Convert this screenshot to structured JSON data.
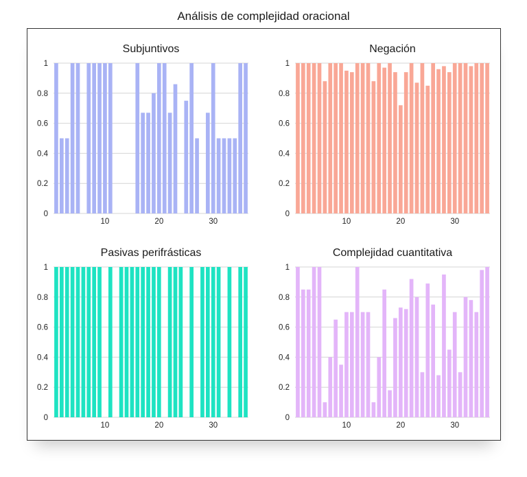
{
  "title": "Análisis de complejidad oracional",
  "chart_data": [
    {
      "type": "bar",
      "title": "Subjuntivos",
      "color": "#a9b3f5",
      "x": [
        1,
        2,
        3,
        4,
        5,
        6,
        7,
        8,
        9,
        10,
        11,
        12,
        13,
        14,
        15,
        16,
        17,
        18,
        19,
        20,
        21,
        22,
        23,
        24,
        25,
        26,
        27,
        28,
        29,
        30,
        31,
        32,
        33,
        34,
        35,
        36
      ],
      "values": [
        1,
        0.5,
        0.5,
        1,
        1,
        0,
        1,
        1,
        1,
        1,
        1,
        0,
        0,
        0,
        0,
        1,
        0.67,
        0.67,
        0.8,
        1,
        1,
        0.67,
        0.86,
        0,
        0.75,
        1,
        0.5,
        0,
        0.67,
        1,
        0.5,
        0.5,
        0.5,
        0.5,
        1,
        1
      ],
      "ylim": [
        0,
        1
      ],
      "yticks": [
        0,
        0.2,
        0.4,
        0.6,
        0.8,
        1
      ],
      "ytick_labels": [
        "0",
        "0.2",
        "0.4",
        "0.6",
        "0.8",
        "1"
      ],
      "xticks": [
        10,
        20,
        30
      ],
      "xtick_labels": [
        "10",
        "20",
        "30"
      ],
      "grid": true
    },
    {
      "type": "bar",
      "title": "Negación",
      "color": "#f9a796",
      "x": [
        1,
        2,
        3,
        4,
        5,
        6,
        7,
        8,
        9,
        10,
        11,
        12,
        13,
        14,
        15,
        16,
        17,
        18,
        19,
        20,
        21,
        22,
        23,
        24,
        25,
        26,
        27,
        28,
        29,
        30,
        31,
        32,
        33,
        34,
        35,
        36
      ],
      "values": [
        1,
        1,
        1,
        1,
        1,
        0.88,
        1,
        1,
        1,
        0.95,
        0.94,
        1,
        1,
        1,
        0.88,
        1,
        0.97,
        1,
        0.94,
        0.72,
        0.94,
        1,
        0.87,
        1,
        0.85,
        1,
        0.96,
        0.98,
        0.94,
        1,
        1,
        1,
        0.98,
        1,
        1,
        1
      ],
      "ylim": [
        0,
        1
      ],
      "yticks": [
        0,
        0.2,
        0.4,
        0.6,
        0.8,
        1
      ],
      "ytick_labels": [
        "0",
        "0.2",
        "0.4",
        "0.6",
        "0.8",
        "1"
      ],
      "xticks": [
        10,
        20,
        30
      ],
      "xtick_labels": [
        "10",
        "20",
        "30"
      ],
      "grid": true
    },
    {
      "type": "bar",
      "title": "Pasivas perifrásticas",
      "color": "#1ee3c2",
      "x": [
        1,
        2,
        3,
        4,
        5,
        6,
        7,
        8,
        9,
        10,
        11,
        12,
        13,
        14,
        15,
        16,
        17,
        18,
        19,
        20,
        21,
        22,
        23,
        24,
        25,
        26,
        27,
        28,
        29,
        30,
        31,
        32,
        33,
        34,
        35,
        36
      ],
      "values": [
        1,
        1,
        1,
        1,
        1,
        1,
        1,
        1,
        1,
        0,
        1,
        0,
        1,
        1,
        1,
        1,
        1,
        1,
        1,
        1,
        0,
        1,
        1,
        1,
        0,
        1,
        0,
        1,
        1,
        1,
        1,
        0,
        1,
        0,
        1,
        1
      ],
      "ylim": [
        0,
        1
      ],
      "yticks": [
        0,
        0.2,
        0.4,
        0.6,
        0.8,
        1
      ],
      "ytick_labels": [
        "0",
        "0.2",
        "0.4",
        "0.6",
        "0.8",
        "1"
      ],
      "xticks": [
        10,
        20,
        30
      ],
      "xtick_labels": [
        "10",
        "20",
        "30"
      ],
      "grid": true
    },
    {
      "type": "bar",
      "title": "Complejidad cuantitativa",
      "color": "#e3b5f9",
      "x": [
        1,
        2,
        3,
        4,
        5,
        6,
        7,
        8,
        9,
        10,
        11,
        12,
        13,
        14,
        15,
        16,
        17,
        18,
        19,
        20,
        21,
        22,
        23,
        24,
        25,
        26,
        27,
        28,
        29,
        30,
        31,
        32,
        33,
        34,
        35,
        36
      ],
      "values": [
        1,
        0.85,
        0.85,
        1,
        1,
        0.1,
        0.4,
        0.65,
        0.35,
        0.7,
        0.7,
        1,
        0.7,
        0.7,
        0.1,
        0.4,
        0.85,
        0.18,
        0.66,
        0.73,
        0.72,
        0.92,
        0.8,
        0.3,
        0.89,
        0.75,
        0.28,
        0.95,
        0.45,
        0.7,
        0.3,
        0.8,
        0.78,
        0.7,
        0.98,
        1
      ],
      "ylim": [
        0,
        1
      ],
      "yticks": [
        0,
        0.2,
        0.4,
        0.6,
        0.8,
        1
      ],
      "ytick_labels": [
        "0",
        "0.2",
        "0.4",
        "0.6",
        "0.8",
        "1"
      ],
      "xticks": [
        10,
        20,
        30
      ],
      "xtick_labels": [
        "10",
        "20",
        "30"
      ],
      "grid": true
    }
  ]
}
